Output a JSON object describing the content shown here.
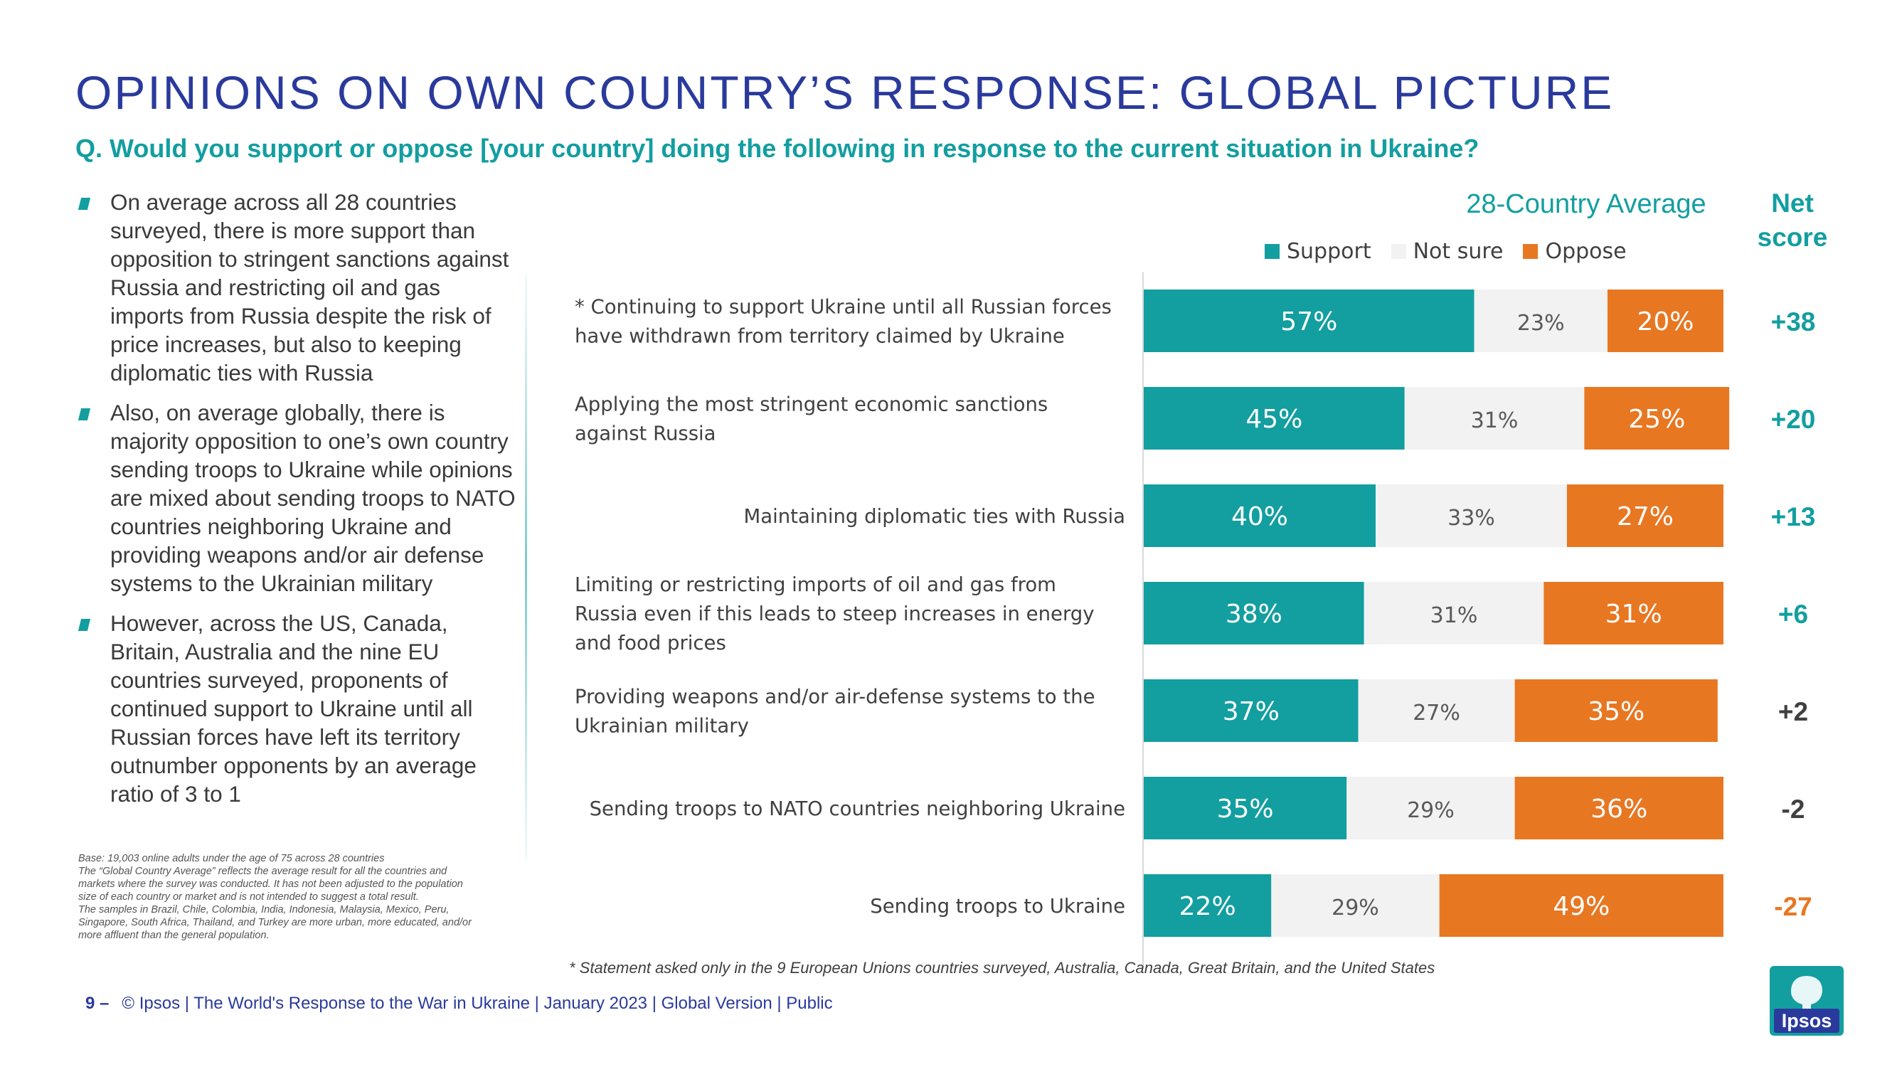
{
  "page": {
    "title": "OPINIONS ON OWN COUNTRY’S RESPONSE: GLOBAL PICTURE",
    "question": "Q. Would you support or oppose [your country] doing the following in response to the current situation in Ukraine?",
    "bullets": [
      "On average across all 28 countries surveyed, there is more support than opposition to stringent sanctions against Russia and restricting oil and gas imports from Russia despite the risk of price increases, but also to keeping diplomatic ties with Russia",
      "Also, on average globally, there is majority opposition to one’s own country sending troops to Ukraine while opinions are mixed about sending troops to NATO countries neighboring Ukraine and providing weapons and/or air defense systems to the Ukrainian military",
      "However, across the US, Canada, Britain, Australia and the nine EU countries surveyed, proponents of continued support to Ukraine until all Russian forces have left its territory outnumber opponents by an average ratio of 3 to 1"
    ],
    "base_note": [
      "Base: 19,003 online adults under the age of 75 across 28 countries",
      "The “Global Country Average” reflects the average result for all the countries and markets where the survey was conducted. It has not been adjusted to the population size of each country or market and is not intended to suggest a total result.",
      "The samples in Brazil, Chile, Colombia, India, Indonesia, Malaysia, Mexico, Peru, Singapore, South Africa, Thailand, and Turkey are more urban, more educated, and/or more affluent than the general population."
    ],
    "footnote": "* Statement asked only in the 9 European Unions countries surveyed, Australia, Canada, Great Britain, and the United States",
    "footer_page": "9 –",
    "footer_text": "© Ipsos | The World's Response to the War in Ukraine | January 2023 | Global Version | Public",
    "logo_text": "Ipsos"
  },
  "colors": {
    "support": "#139ea0",
    "not_sure": "#f2f2f2",
    "oppose": "#e87722",
    "net_positive": "#139ea0",
    "net_neutral": "#404040",
    "net_negative": "#e87722",
    "logo_bg": "#139ea0",
    "logo_text_bg": "#2a3a9c"
  },
  "chart_data": {
    "type": "bar",
    "orientation": "horizontal",
    "stacked": true,
    "title": "28-Country Average",
    "net_header": "Net score",
    "value_suffix": "%",
    "xlim": [
      0,
      100
    ],
    "legend": [
      "Support",
      "Not sure",
      "Oppose"
    ],
    "legend_position": "top-right",
    "categories": [
      "* Continuing to support Ukraine until all Russian forces have withdrawn from territory claimed by Ukraine",
      "Applying the most stringent economic sanctions against Russia",
      "Maintaining diplomatic ties with Russia",
      "Limiting or restricting imports of oil and gas from Russia even if this leads to steep increases in energy and food prices",
      "Providing weapons and/or air-defense systems to the Ukrainian military",
      "Sending troops to NATO countries neighboring Ukraine",
      "Sending troops to Ukraine"
    ],
    "series": [
      {
        "name": "Support",
        "values": [
          57,
          45,
          40,
          38,
          37,
          35,
          22
        ]
      },
      {
        "name": "Not sure",
        "values": [
          23,
          31,
          33,
          31,
          27,
          29,
          29
        ]
      },
      {
        "name": "Oppose",
        "values": [
          20,
          25,
          27,
          31,
          35,
          36,
          49
        ]
      }
    ],
    "net_scores": [
      "+38",
      "+20",
      "+13",
      "+6",
      "+2",
      "-2",
      "-27"
    ],
    "net_values": [
      38,
      20,
      13,
      6,
      2,
      -2,
      -27
    ]
  }
}
